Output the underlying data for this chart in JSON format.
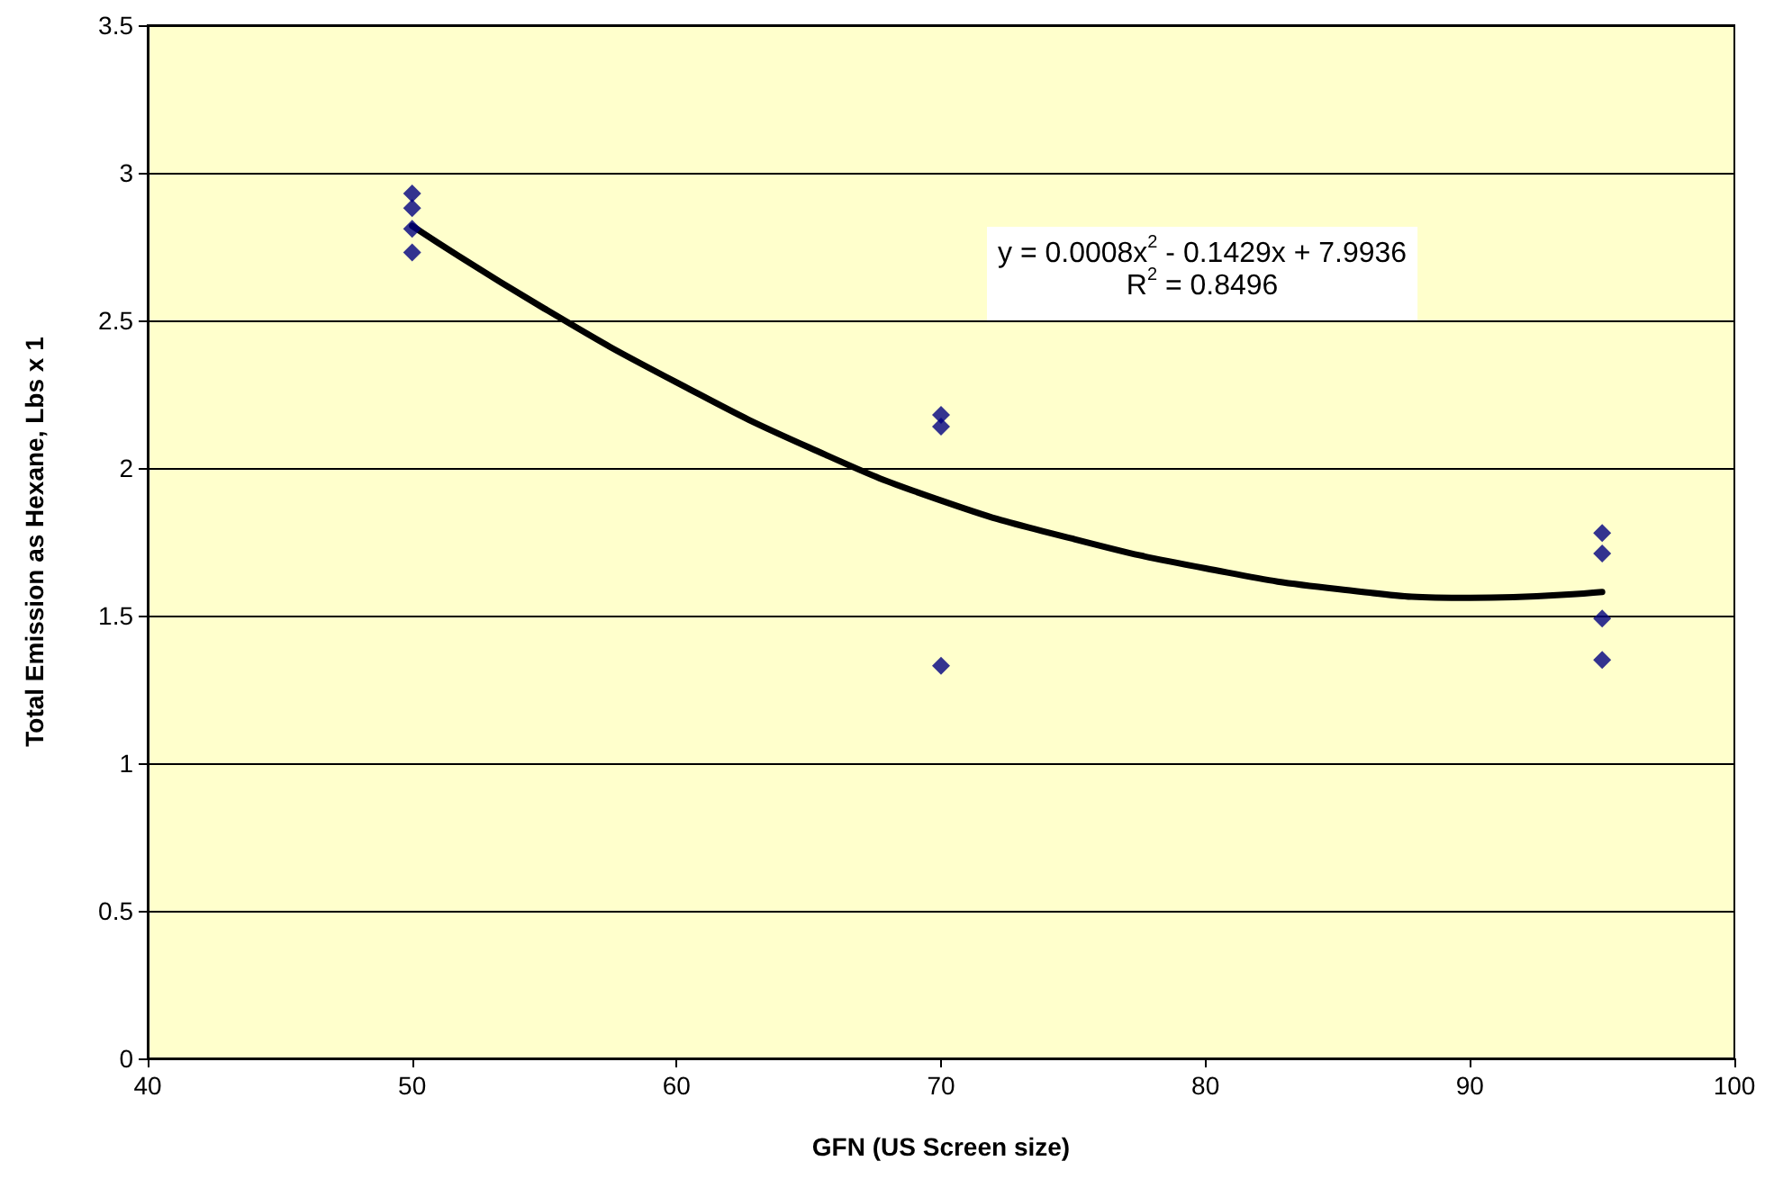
{
  "chart_data": {
    "type": "scatter",
    "xlabel": "GFN (US Screen size)",
    "ylabel": "Total Emission as Hexane, Lbs x 1",
    "xlim": [
      40,
      100
    ],
    "xticks": [
      40,
      50,
      60,
      70,
      80,
      90,
      100
    ],
    "ylim": [
      0,
      3.5
    ],
    "yticks": [
      0,
      0.5,
      1,
      1.5,
      2,
      2.5,
      3,
      3.5
    ],
    "grid": "y",
    "marker": "diamond",
    "series": [
      {
        "color": "#000080",
        "x": [
          50,
          50,
          50,
          50,
          70,
          70,
          70,
          95,
          95,
          95,
          95
        ],
        "values": [
          2.93,
          2.88,
          2.81,
          2.73,
          2.18,
          2.14,
          1.33,
          1.78,
          1.71,
          1.49,
          1.35
        ]
      },
      {
        "type": "line",
        "color": "#000000",
        "marker": "none",
        "line_style": "solid",
        "x": [
          50,
          55,
          60,
          65,
          70,
          75,
          80,
          85,
          90,
          95
        ],
        "values": [
          2.82,
          2.54,
          2.29,
          2.07,
          1.89,
          1.76,
          1.66,
          1.59,
          1.56,
          1.58
        ]
      }
    ],
    "annotations": [
      "y = 0.0008x$^{2}$ - 0.1429x + 7.9936",
      "R$^{2}$ = 0.8496"
    ]
  }
}
